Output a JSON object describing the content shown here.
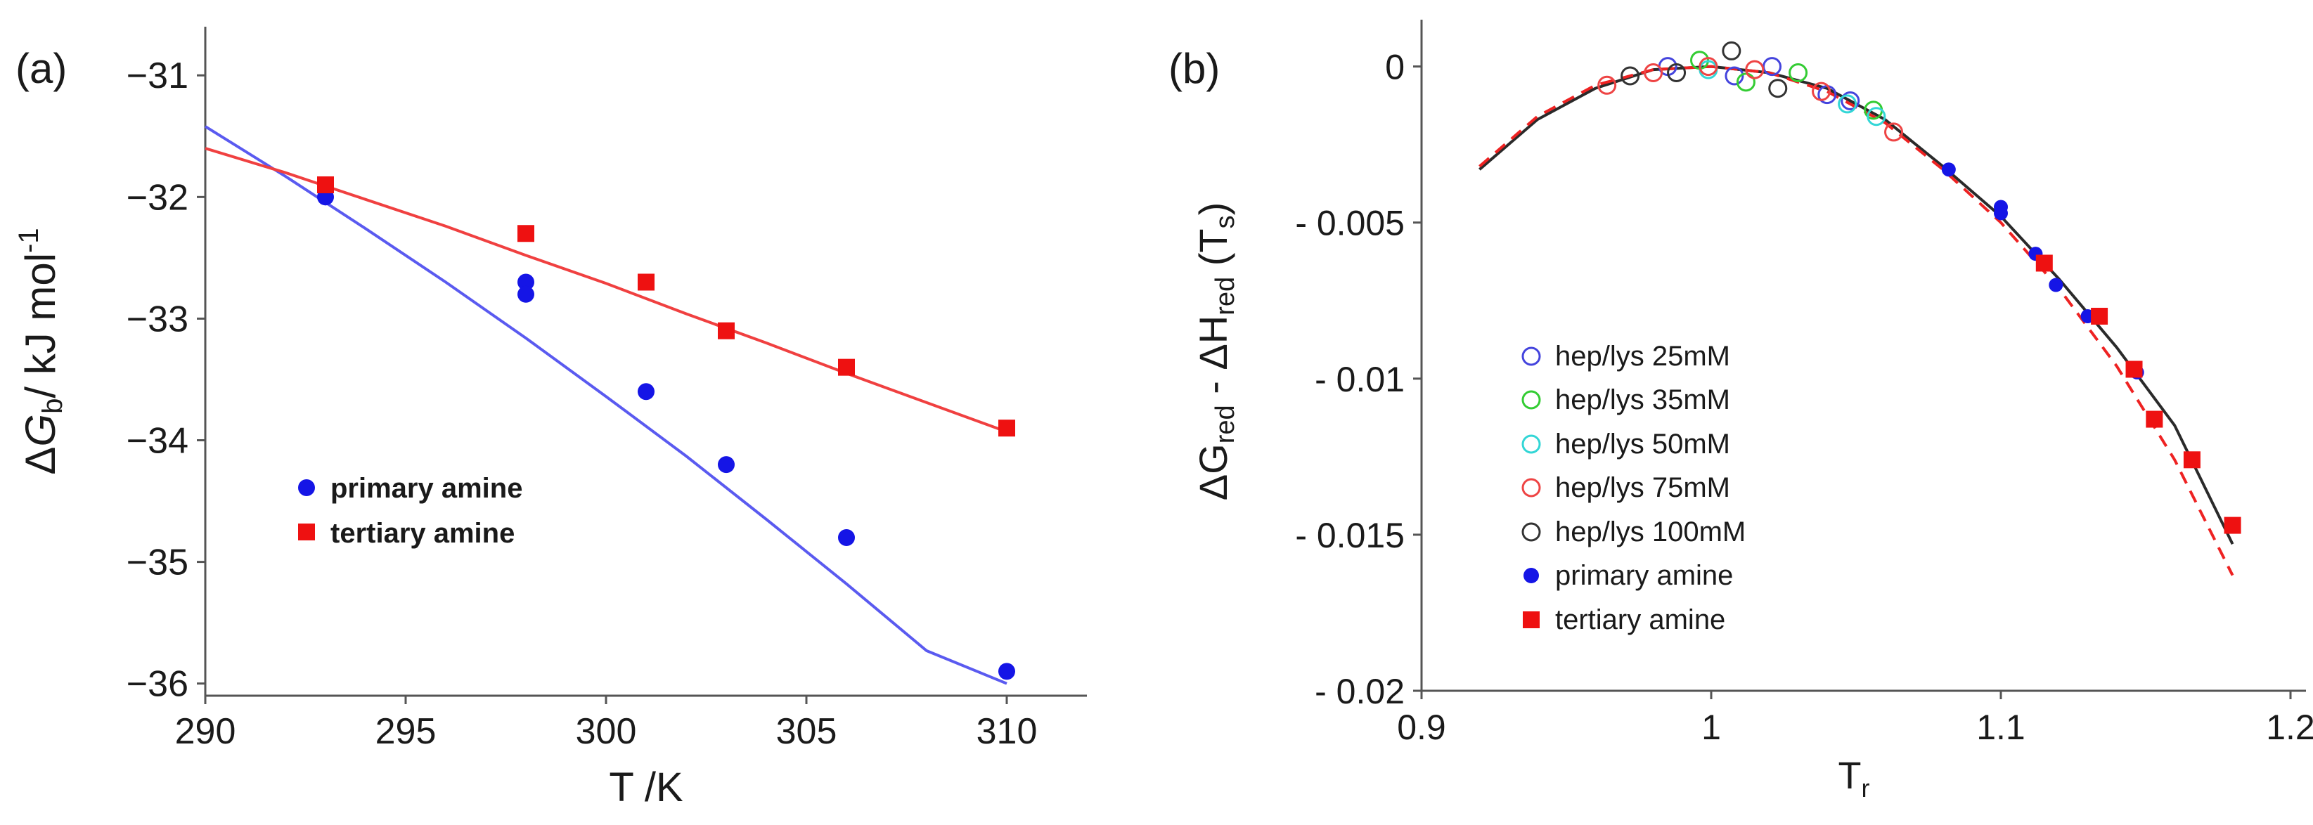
{
  "figure_labels": {
    "a": "(a)",
    "b": "(b)"
  },
  "chart_data": [
    {
      "id": "a",
      "type": "scatter",
      "title": "",
      "xlabel": "T /K",
      "ylabel": {
        "delta": "Δ",
        "symbol": "G",
        "sub": "b",
        "rest": "/ kJ mol",
        "sup": "-1"
      },
      "xlim": [
        290,
        312
      ],
      "ylim": [
        -36.1,
        -30.6
      ],
      "xticks": [
        290,
        295,
        300,
        305,
        310
      ],
      "xtick_labels": [
        "290",
        "295",
        "300",
        "305",
        "310"
      ],
      "yticks": [
        -36,
        -35,
        -34,
        -33,
        -32,
        -31
      ],
      "ytick_labels": [
        "−36",
        "−35",
        "−34",
        "−33",
        "−32",
        "−31"
      ],
      "grid": false,
      "legend_position": "center-left",
      "series": [
        {
          "name": "primary amine",
          "color": "#1515e6",
          "line_color": "#5a5af0",
          "marker": "circle",
          "points": [
            [
              293,
              -32.0
            ],
            [
              298,
              -32.7
            ],
            [
              298,
              -32.8
            ],
            [
              301,
              -33.6
            ],
            [
              303,
              -34.2
            ],
            [
              306,
              -34.8
            ],
            [
              310,
              -35.9
            ]
          ],
          "fit": [
            [
              290,
              -31.42
            ],
            [
              292,
              -31.83
            ],
            [
              294,
              -32.26
            ],
            [
              296,
              -32.7
            ],
            [
              298,
              -33.16
            ],
            [
              300,
              -33.64
            ],
            [
              302,
              -34.13
            ],
            [
              304,
              -34.65
            ],
            [
              306,
              -35.18
            ],
            [
              308,
              -35.73
            ],
            [
              310,
              -36.0
            ]
          ]
        },
        {
          "name": "tertiary amine",
          "color": "#ee1111",
          "line_color": "#f04040",
          "marker": "square",
          "points": [
            [
              293,
              -31.9
            ],
            [
              298,
              -32.3
            ],
            [
              301,
              -32.7
            ],
            [
              303,
              -33.1
            ],
            [
              306,
              -33.4
            ],
            [
              310,
              -33.9
            ]
          ],
          "fit": [
            [
              290,
              -31.6
            ],
            [
              292,
              -31.8
            ],
            [
              294,
              -32.02
            ],
            [
              296,
              -32.24
            ],
            [
              298,
              -32.48
            ],
            [
              300,
              -32.71
            ],
            [
              302,
              -32.96
            ],
            [
              304,
              -33.2
            ],
            [
              306,
              -33.45
            ],
            [
              308,
              -33.69
            ],
            [
              310,
              -33.93
            ]
          ]
        }
      ]
    },
    {
      "id": "b",
      "type": "scatter",
      "title": "",
      "xlabel": {
        "main": "T",
        "sub": "r"
      },
      "ylabel": {
        "part1": "ΔG",
        "sub1": "red",
        "mid": " - ΔH",
        "sub2": "red",
        "open": " (T",
        "sub3": "s",
        "close": ")"
      },
      "xlim": [
        0.9,
        1.2
      ],
      "ylim": [
        -0.02,
        0.0015
      ],
      "xticks": [
        0.9,
        1.0,
        1.1,
        1.2
      ],
      "xtick_labels": [
        "0.9",
        "1",
        "1.1",
        "1.2"
      ],
      "yticks": [
        0,
        -0.005,
        -0.01,
        -0.015,
        -0.02
      ],
      "ytick_labels": [
        "0",
        "- 0.005",
        "- 0.01",
        "- 0.015",
        "- 0.02"
      ],
      "grid": false,
      "legend_position": "bottom-left",
      "curves": [
        {
          "name": "fit-solid",
          "color": "#2a2a2a",
          "dash": "none",
          "points": [
            [
              0.92,
              -0.0033
            ],
            [
              0.94,
              -0.0017
            ],
            [
              0.96,
              -0.0007
            ],
            [
              0.98,
              -0.0001
            ],
            [
              1.0,
              0.0
            ],
            [
              1.02,
              -0.0002
            ],
            [
              1.04,
              -0.0007
            ],
            [
              1.06,
              -0.0017
            ],
            [
              1.08,
              -0.0032
            ],
            [
              1.1,
              -0.0048
            ],
            [
              1.12,
              -0.0068
            ],
            [
              1.14,
              -0.009
            ],
            [
              1.16,
              -0.0115
            ],
            [
              1.18,
              -0.0153
            ]
          ]
        },
        {
          "name": "fit-dashed",
          "color": "#ee2222",
          "dash": "18,12",
          "points": [
            [
              0.92,
              -0.0032
            ],
            [
              0.94,
              -0.0016
            ],
            [
              0.96,
              -0.0006
            ],
            [
              0.98,
              -0.0001
            ],
            [
              1.0,
              0.0
            ],
            [
              1.02,
              -0.0002
            ],
            [
              1.04,
              -0.0008
            ],
            [
              1.06,
              -0.0018
            ],
            [
              1.08,
              -0.0033
            ],
            [
              1.1,
              -0.005
            ],
            [
              1.12,
              -0.0071
            ],
            [
              1.14,
              -0.0096
            ],
            [
              1.16,
              -0.0126
            ],
            [
              1.18,
              -0.0163
            ]
          ]
        }
      ],
      "series": [
        {
          "name": "hep/lys 25mM",
          "color": "#4444dd",
          "marker": "open-circle",
          "points": [
            [
              0.985,
              0.0
            ],
            [
              1.008,
              -0.0003
            ],
            [
              1.021,
              0.0
            ],
            [
              1.04,
              -0.0009
            ],
            [
              1.048,
              -0.0011
            ]
          ]
        },
        {
          "name": "hep/lys 35mM",
          "color": "#33cc33",
          "marker": "open-circle",
          "points": [
            [
              0.996,
              0.0002
            ],
            [
              1.012,
              -0.0005
            ],
            [
              1.03,
              -0.0002
            ],
            [
              1.056,
              -0.0014
            ]
          ]
        },
        {
          "name": "hep/lys 50mM",
          "color": "#33d6d6",
          "marker": "open-circle",
          "points": [
            [
              0.999,
              -0.0001
            ],
            [
              1.047,
              -0.0012
            ],
            [
              1.057,
              -0.0016
            ]
          ]
        },
        {
          "name": "hep/lys 75mM",
          "color": "#ee4444",
          "marker": "open-circle",
          "points": [
            [
              0.964,
              -0.0006
            ],
            [
              0.98,
              -0.0002
            ],
            [
              0.999,
              0.0
            ],
            [
              1.015,
              -0.0001
            ],
            [
              1.038,
              -0.0008
            ],
            [
              1.063,
              -0.0021
            ]
          ]
        },
        {
          "name": "hep/lys 100mM",
          "color": "#333333",
          "marker": "open-circle",
          "points": [
            [
              0.972,
              -0.0003
            ],
            [
              0.988,
              -0.0002
            ],
            [
              1.007,
              0.0005
            ],
            [
              1.023,
              -0.0007
            ]
          ]
        },
        {
          "name": "primary amine",
          "color": "#1515e6",
          "marker": "circle",
          "points": [
            [
              1.082,
              -0.0033
            ],
            [
              1.1,
              -0.0045
            ],
            [
              1.1,
              -0.0047
            ],
            [
              1.112,
              -0.006
            ],
            [
              1.119,
              -0.007
            ],
            [
              1.13,
              -0.008
            ],
            [
              1.147,
              -0.0098
            ]
          ]
        },
        {
          "name": "tertiary amine",
          "color": "#ee1111",
          "marker": "square",
          "points": [
            [
              1.115,
              -0.0063
            ],
            [
              1.134,
              -0.008
            ],
            [
              1.146,
              -0.0097
            ],
            [
              1.153,
              -0.0113
            ],
            [
              1.166,
              -0.0126
            ],
            [
              1.18,
              -0.0147
            ]
          ]
        }
      ]
    }
  ]
}
